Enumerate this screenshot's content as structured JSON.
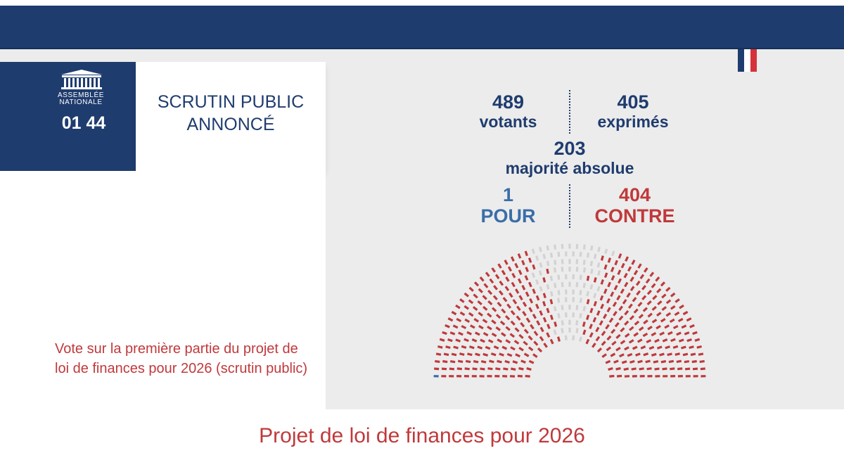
{
  "colors": {
    "navy": "#1f3c6e",
    "pour_blue": "#3a6da8",
    "contre_red": "#c0393b",
    "abstention_gray": "#d2d2d2",
    "flag": [
      "#1f3c6e",
      "#ffffff",
      "#d5323a"
    ]
  },
  "logo": {
    "org_line1": "ASSEMBLÉE",
    "org_line2": "NATIONALE",
    "icon": "assemblee-building-icon",
    "time": "01 44"
  },
  "status": {
    "line1": "SCRUTIN PUBLIC",
    "line2": "ANNONCÉ"
  },
  "results": {
    "votants": {
      "value": "489",
      "label": "votants"
    },
    "exprimes": {
      "value": "405",
      "label": "exprimés"
    },
    "majorite": {
      "value": "203",
      "label": "majorité absolue"
    },
    "pour": {
      "value": "1",
      "label": "POUR"
    },
    "contre": {
      "value": "404",
      "label": "CONTRE"
    }
  },
  "hemicycle": {
    "rows": 13,
    "pour": 1,
    "contre": 404,
    "non_exprimes": 84
  },
  "vote_description": "Vote sur la première partie du projet de loi de finances pour 2026 (scrutin public)",
  "footer_title": "Projet de loi de finances pour 2026"
}
